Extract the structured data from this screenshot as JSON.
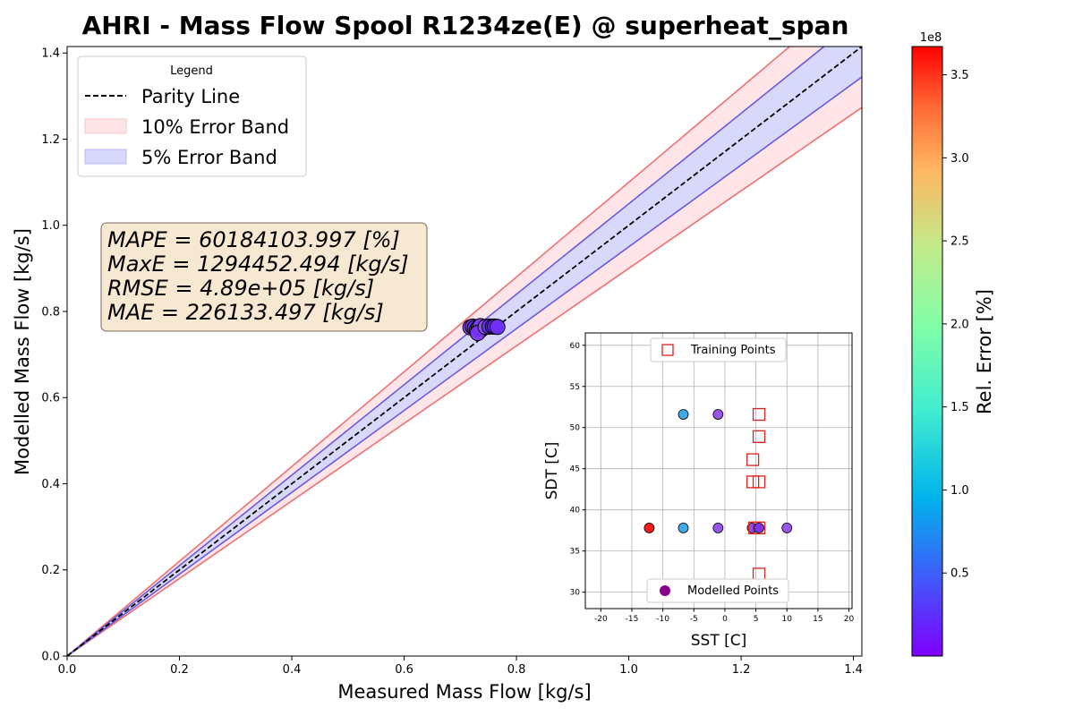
{
  "colors": {
    "parity": "#000000",
    "band10_fill": "#ffe4e8",
    "band10_edge": "#f07070",
    "band5_fill": "#d8d8fb",
    "band5_edge": "#6a5ae0",
    "training_edge": "#e0201e",
    "modelled_legend": "#8b008b"
  },
  "chart_data": {
    "type": "scatter",
    "title": "AHRI - Mass Flow Spool R1234ze(E) @ superheat_span",
    "xlabel": "Measured Mass Flow [kg/s]",
    "ylabel": "Modelled Mass Flow [kg/s]",
    "xlim": [
      0,
      1.415
    ],
    "ylim": [
      0,
      1.415
    ],
    "xticks": [
      "0.0",
      "0.2",
      "0.4",
      "0.6",
      "0.8",
      "1.0",
      "1.2",
      "1.4"
    ],
    "yticks": [
      "0.0",
      "0.2",
      "0.4",
      "0.6",
      "0.8",
      "1.0",
      "1.2",
      "1.4"
    ],
    "grid": false,
    "legend": {
      "title": "Legend",
      "placement": "top-left",
      "entries": [
        "Parity Line",
        "10% Error Band",
        "5% Error Band"
      ]
    },
    "bands": [
      {
        "name": "10% Error Band",
        "fraction": 0.1
      },
      {
        "name": "5% Error Band",
        "fraction": 0.05
      }
    ],
    "stats": [
      "MAPE = 60184103.997 [%]",
      "MaxE = 1294452.494 [kg/s]",
      "RMSE = 4.89e+05 [kg/s]",
      "MAE = 226133.497 [kg/s]"
    ],
    "points": [
      {
        "x": 0.718,
        "y": 0.763,
        "color": "#8a3ff0"
      },
      {
        "x": 0.722,
        "y": 0.765,
        "color": "#7a30f5"
      },
      {
        "x": 0.726,
        "y": 0.762,
        "color": "#6c2cf6"
      },
      {
        "x": 0.73,
        "y": 0.758,
        "color": "#7f36f4"
      },
      {
        "x": 0.733,
        "y": 0.764,
        "color": "#5d26f8"
      },
      {
        "x": 0.736,
        "y": 0.766,
        "color": "#8440f2"
      },
      {
        "x": 0.731,
        "y": 0.75,
        "color": "#7a35f5"
      },
      {
        "x": 0.745,
        "y": 0.764,
        "color": "#9050ee"
      },
      {
        "x": 0.752,
        "y": 0.765,
        "color": "#6a2cf7"
      },
      {
        "x": 0.758,
        "y": 0.765,
        "color": "#5320fa"
      },
      {
        "x": 0.762,
        "y": 0.765,
        "color": "#7a3cf5"
      },
      {
        "x": 0.766,
        "y": 0.764,
        "color": "#6e30f6"
      }
    ],
    "colorbar": {
      "label": "Rel. Error [%]",
      "multiplier": "1e8",
      "min": 0,
      "max": 3.67,
      "ticks": [
        "0.5",
        "1.0",
        "1.5",
        "2.0",
        "2.5",
        "3.0",
        "3.5"
      ],
      "tick_values": [
        0.5,
        1.0,
        1.5,
        2.0,
        2.5,
        3.0,
        3.5
      ]
    },
    "inset": {
      "type": "scatter",
      "xlabel": "SST [C]",
      "ylabel": "SDT [C]",
      "xlim": [
        -22.5,
        20.5
      ],
      "ylim": [
        28,
        61.5
      ],
      "xticks": [
        -20,
        -15,
        -10,
        -5,
        0,
        5,
        10,
        15,
        20
      ],
      "yticks": [
        30,
        35,
        40,
        45,
        50,
        55,
        60
      ],
      "grid": true,
      "training_label": "Training Points",
      "modelled_label": "Modelled Points",
      "training_points": [
        {
          "x": 5.5,
          "y": 51.6
        },
        {
          "x": 5.5,
          "y": 48.9
        },
        {
          "x": 4.5,
          "y": 46.1
        },
        {
          "x": 4.5,
          "y": 43.4
        },
        {
          "x": 5.5,
          "y": 43.4
        },
        {
          "x": 4.8,
          "y": 37.8
        },
        {
          "x": 5.5,
          "y": 37.8
        },
        {
          "x": 5.5,
          "y": 32.2
        }
      ],
      "modelled_points": [
        {
          "x": -6.7,
          "y": 51.6,
          "color": "#3fa9e8"
        },
        {
          "x": -1.1,
          "y": 51.6,
          "color": "#9a55ea"
        },
        {
          "x": -12.2,
          "y": 37.8,
          "color": "#ff1a1a"
        },
        {
          "x": -6.7,
          "y": 37.8,
          "color": "#3fa9e8"
        },
        {
          "x": -1.1,
          "y": 37.8,
          "color": "#9a55ea"
        },
        {
          "x": 4.4,
          "y": 37.8,
          "color": "#8e4ff0"
        },
        {
          "x": 5.5,
          "y": 37.8,
          "color": "#7a35f4"
        },
        {
          "x": 10.0,
          "y": 37.8,
          "color": "#9a55ea"
        }
      ]
    }
  }
}
